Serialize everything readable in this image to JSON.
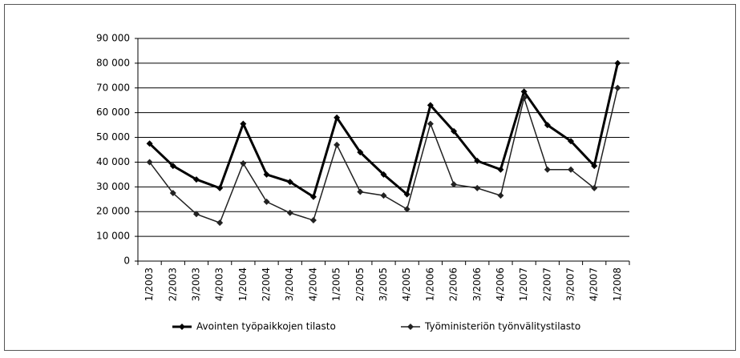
{
  "chart_data": {
    "type": "line",
    "categories": [
      "1/2003",
      "2/2003",
      "3/2003",
      "4/2003",
      "1/2004",
      "2/2004",
      "3/2004",
      "4/2004",
      "1/2005",
      "2/2005",
      "3/2005",
      "4/2005",
      "1/2006",
      "2/2006",
      "3/2006",
      "4/2006",
      "1/2007",
      "2/2007",
      "3/2007",
      "4/2007",
      "1/2008"
    ],
    "series": [
      {
        "name": "Avointen työpaikkojen tilasto",
        "color": "#000000",
        "values": [
          47500,
          38500,
          33000,
          29500,
          55500,
          35000,
          32000,
          26000,
          58000,
          44000,
          35000,
          27000,
          63000,
          52500,
          40500,
          37000,
          68500,
          55000,
          48500,
          38500,
          80000
        ]
      },
      {
        "name": "Työministeriön työnvälitystilasto",
        "color": "#222222",
        "values": [
          40000,
          27500,
          19000,
          15500,
          39500,
          24000,
          19500,
          16500,
          47000,
          28000,
          26500,
          21000,
          55500,
          31000,
          29500,
          26500,
          66000,
          37000,
          37000,
          29500,
          70000
        ]
      }
    ],
    "ylim": [
      0,
      90000
    ],
    "yticks": [
      {
        "value": 0,
        "label": "0"
      },
      {
        "value": 10000,
        "label": "10 000"
      },
      {
        "value": 20000,
        "label": "20 000"
      },
      {
        "value": 30000,
        "label": "30 000"
      },
      {
        "value": 40000,
        "label": "40 000"
      },
      {
        "value": 50000,
        "label": "50 000"
      },
      {
        "value": 60000,
        "label": "60 000"
      },
      {
        "value": 70000,
        "label": "70 000"
      },
      {
        "value": 80000,
        "label": "80 000"
      },
      {
        "value": 90000,
        "label": "90 000"
      }
    ],
    "grid": true,
    "legend": "bottom"
  }
}
